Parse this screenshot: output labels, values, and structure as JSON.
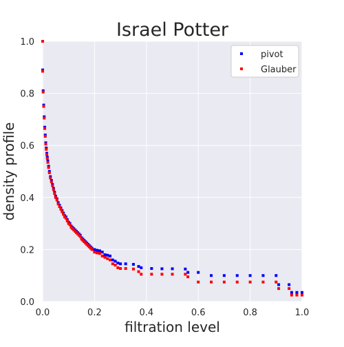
{
  "chart_data": {
    "type": "scatter",
    "title": "Israel Potter",
    "xlabel": "filtration level",
    "ylabel": "density profile",
    "xlim": [
      0,
      1
    ],
    "ylim": [
      0,
      1
    ],
    "xticks": [
      "0.0",
      "0.2",
      "0.4",
      "0.6",
      "0.8",
      "1.0"
    ],
    "yticks": [
      "0.0",
      "0.2",
      "0.4",
      "0.6",
      "0.8",
      "1.0"
    ],
    "grid": true,
    "legend_position": "top-right",
    "series": [
      {
        "name": "pivot",
        "color": "#0000ff",
        "points": [
          [
            0.0,
            1.0
          ],
          [
            0.0,
            0.89
          ],
          [
            0.002,
            0.81
          ],
          [
            0.004,
            0.755
          ],
          [
            0.006,
            0.71
          ],
          [
            0.008,
            0.67
          ],
          [
            0.01,
            0.64
          ],
          [
            0.012,
            0.61
          ],
          [
            0.014,
            0.59
          ],
          [
            0.016,
            0.57
          ],
          [
            0.018,
            0.555
          ],
          [
            0.02,
            0.54
          ],
          [
            0.023,
            0.52
          ],
          [
            0.026,
            0.5
          ],
          [
            0.03,
            0.48
          ],
          [
            0.034,
            0.465
          ],
          [
            0.038,
            0.45
          ],
          [
            0.042,
            0.435
          ],
          [
            0.046,
            0.42
          ],
          [
            0.05,
            0.405
          ],
          [
            0.055,
            0.395
          ],
          [
            0.06,
            0.38
          ],
          [
            0.065,
            0.37
          ],
          [
            0.07,
            0.36
          ],
          [
            0.075,
            0.35
          ],
          [
            0.08,
            0.34
          ],
          [
            0.085,
            0.33
          ],
          [
            0.09,
            0.325
          ],
          [
            0.095,
            0.315
          ],
          [
            0.1,
            0.305
          ],
          [
            0.105,
            0.3
          ],
          [
            0.11,
            0.29
          ],
          [
            0.115,
            0.285
          ],
          [
            0.12,
            0.28
          ],
          [
            0.125,
            0.275
          ],
          [
            0.13,
            0.27
          ],
          [
            0.135,
            0.265
          ],
          [
            0.14,
            0.26
          ],
          [
            0.145,
            0.255
          ],
          [
            0.15,
            0.245
          ],
          [
            0.155,
            0.24
          ],
          [
            0.16,
            0.235
          ],
          [
            0.165,
            0.23
          ],
          [
            0.17,
            0.225
          ],
          [
            0.175,
            0.22
          ],
          [
            0.18,
            0.215
          ],
          [
            0.185,
            0.21
          ],
          [
            0.19,
            0.205
          ],
          [
            0.2,
            0.2
          ],
          [
            0.21,
            0.197
          ],
          [
            0.22,
            0.195
          ],
          [
            0.23,
            0.19
          ],
          [
            0.24,
            0.18
          ],
          [
            0.25,
            0.178
          ],
          [
            0.26,
            0.175
          ],
          [
            0.27,
            0.16
          ],
          [
            0.28,
            0.155
          ],
          [
            0.29,
            0.148
          ],
          [
            0.3,
            0.145
          ],
          [
            0.32,
            0.145
          ],
          [
            0.35,
            0.143
          ],
          [
            0.37,
            0.135
          ],
          [
            0.38,
            0.13
          ],
          [
            0.42,
            0.127
          ],
          [
            0.46,
            0.126
          ],
          [
            0.5,
            0.126
          ],
          [
            0.55,
            0.125
          ],
          [
            0.56,
            0.112
          ],
          [
            0.6,
            0.112
          ],
          [
            0.65,
            0.1
          ],
          [
            0.7,
            0.1
          ],
          [
            0.75,
            0.1
          ],
          [
            0.8,
            0.1
          ],
          [
            0.85,
            0.1
          ],
          [
            0.9,
            0.1
          ],
          [
            0.91,
            0.065
          ],
          [
            0.95,
            0.065
          ],
          [
            0.96,
            0.035
          ],
          [
            0.98,
            0.035
          ],
          [
            1.0,
            0.035
          ]
        ]
      },
      {
        "name": "Glauber",
        "color": "#ff0000",
        "points": [
          [
            0.0,
            1.0
          ],
          [
            0.0,
            0.885
          ],
          [
            0.002,
            0.805
          ],
          [
            0.004,
            0.75
          ],
          [
            0.006,
            0.705
          ],
          [
            0.008,
            0.665
          ],
          [
            0.01,
            0.635
          ],
          [
            0.012,
            0.605
          ],
          [
            0.014,
            0.585
          ],
          [
            0.016,
            0.565
          ],
          [
            0.018,
            0.55
          ],
          [
            0.02,
            0.535
          ],
          [
            0.023,
            0.515
          ],
          [
            0.026,
            0.495
          ],
          [
            0.03,
            0.475
          ],
          [
            0.034,
            0.46
          ],
          [
            0.038,
            0.445
          ],
          [
            0.042,
            0.43
          ],
          [
            0.046,
            0.415
          ],
          [
            0.05,
            0.4
          ],
          [
            0.055,
            0.39
          ],
          [
            0.06,
            0.375
          ],
          [
            0.065,
            0.365
          ],
          [
            0.07,
            0.355
          ],
          [
            0.075,
            0.345
          ],
          [
            0.08,
            0.335
          ],
          [
            0.085,
            0.325
          ],
          [
            0.09,
            0.32
          ],
          [
            0.095,
            0.31
          ],
          [
            0.1,
            0.3
          ],
          [
            0.105,
            0.295
          ],
          [
            0.11,
            0.285
          ],
          [
            0.115,
            0.28
          ],
          [
            0.12,
            0.275
          ],
          [
            0.125,
            0.27
          ],
          [
            0.13,
            0.265
          ],
          [
            0.135,
            0.26
          ],
          [
            0.14,
            0.255
          ],
          [
            0.145,
            0.25
          ],
          [
            0.15,
            0.24
          ],
          [
            0.155,
            0.235
          ],
          [
            0.16,
            0.23
          ],
          [
            0.165,
            0.225
          ],
          [
            0.17,
            0.22
          ],
          [
            0.175,
            0.215
          ],
          [
            0.18,
            0.21
          ],
          [
            0.185,
            0.205
          ],
          [
            0.19,
            0.2
          ],
          [
            0.2,
            0.19
          ],
          [
            0.21,
            0.187
          ],
          [
            0.22,
            0.185
          ],
          [
            0.23,
            0.175
          ],
          [
            0.24,
            0.17
          ],
          [
            0.25,
            0.165
          ],
          [
            0.26,
            0.16
          ],
          [
            0.27,
            0.145
          ],
          [
            0.28,
            0.14
          ],
          [
            0.29,
            0.13
          ],
          [
            0.3,
            0.127
          ],
          [
            0.32,
            0.127
          ],
          [
            0.35,
            0.125
          ],
          [
            0.37,
            0.115
          ],
          [
            0.38,
            0.105
          ],
          [
            0.42,
            0.105
          ],
          [
            0.46,
            0.105
          ],
          [
            0.5,
            0.105
          ],
          [
            0.55,
            0.105
          ],
          [
            0.56,
            0.095
          ],
          [
            0.6,
            0.075
          ],
          [
            0.65,
            0.075
          ],
          [
            0.7,
            0.075
          ],
          [
            0.75,
            0.075
          ],
          [
            0.8,
            0.075
          ],
          [
            0.85,
            0.075
          ],
          [
            0.9,
            0.075
          ],
          [
            0.91,
            0.05
          ],
          [
            0.95,
            0.05
          ],
          [
            0.96,
            0.025
          ],
          [
            0.98,
            0.025
          ],
          [
            1.0,
            0.025
          ]
        ]
      }
    ]
  }
}
